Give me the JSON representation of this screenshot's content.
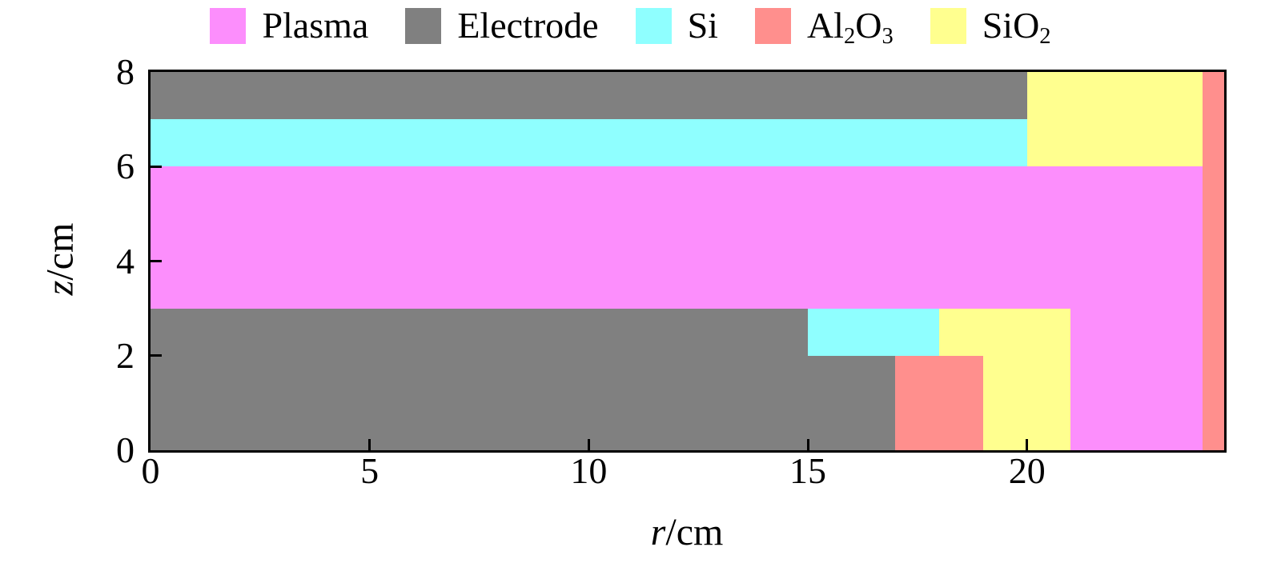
{
  "figure": {
    "background": "#ffffff",
    "text_color": "#000000",
    "axis_line_color": "#000000"
  },
  "chart_data": {
    "type": "heatmap",
    "subtype": "2d-material-region-map",
    "title": "",
    "xlabel_parts": [
      {
        "t": "r",
        "italic": true
      },
      {
        "t": "/cm"
      }
    ],
    "ylabel_parts": [
      {
        "t": "z",
        "italic": true
      },
      {
        "t": "/cm"
      }
    ],
    "xlim": [
      0,
      24.5
    ],
    "ylim": [
      0,
      8
    ],
    "xticks": [
      0,
      5,
      10,
      15,
      20
    ],
    "yticks": [
      0,
      2,
      4,
      6,
      8
    ],
    "grid": false,
    "legend_position": "top-center",
    "legend_order": [
      "plasma",
      "electrode",
      "si",
      "al2o3",
      "sio2"
    ],
    "materials": {
      "plasma": {
        "color": "#FC8EFC",
        "label_parts": [
          {
            "t": "Plasma"
          }
        ]
      },
      "electrode": {
        "color": "#808080",
        "label_parts": [
          {
            "t": "Electrode"
          }
        ]
      },
      "si": {
        "color": "#8FFFFF",
        "label_parts": [
          {
            "t": "Si"
          }
        ]
      },
      "al2o3": {
        "color": "#FF8F8D",
        "label_parts": [
          {
            "t": "Al"
          },
          {
            "t": "2",
            "sub": true
          },
          {
            "t": "O"
          },
          {
            "t": "3",
            "sub": true
          }
        ]
      },
      "sio2": {
        "color": "#FFFF8F",
        "label_parts": [
          {
            "t": "SiO"
          },
          {
            "t": "2",
            "sub": true
          }
        ]
      }
    },
    "regions": [
      {
        "name": "plasma-background",
        "material": "plasma",
        "r": 0,
        "z": 0,
        "w": 24.5,
        "h": 8
      },
      {
        "name": "bottom-electrode-base",
        "material": "electrode",
        "r": 0,
        "z": 0,
        "w": 17,
        "h": 2
      },
      {
        "name": "bottom-electrode-step",
        "material": "electrode",
        "r": 0,
        "z": 2,
        "w": 15,
        "h": 1
      },
      {
        "name": "si-wafer",
        "material": "si",
        "r": 15,
        "z": 2,
        "w": 3,
        "h": 1
      },
      {
        "name": "al2o3-focus-ring",
        "material": "al2o3",
        "r": 17,
        "z": 0,
        "w": 2,
        "h": 2
      },
      {
        "name": "sio2-ring-upper",
        "material": "sio2",
        "r": 18,
        "z": 2,
        "w": 3,
        "h": 1
      },
      {
        "name": "sio2-ring-lower",
        "material": "sio2",
        "r": 19,
        "z": 0,
        "w": 2,
        "h": 2
      },
      {
        "name": "si-showerhead",
        "material": "si",
        "r": 0,
        "z": 6,
        "w": 20,
        "h": 1
      },
      {
        "name": "top-electrode",
        "material": "electrode",
        "r": 0,
        "z": 7,
        "w": 20,
        "h": 1
      },
      {
        "name": "sio2-top-ring",
        "material": "sio2",
        "r": 20,
        "z": 6,
        "w": 4,
        "h": 2
      },
      {
        "name": "al2o3-chamber-wall",
        "material": "al2o3",
        "r": 24,
        "z": 0,
        "w": 0.5,
        "h": 8
      }
    ]
  }
}
